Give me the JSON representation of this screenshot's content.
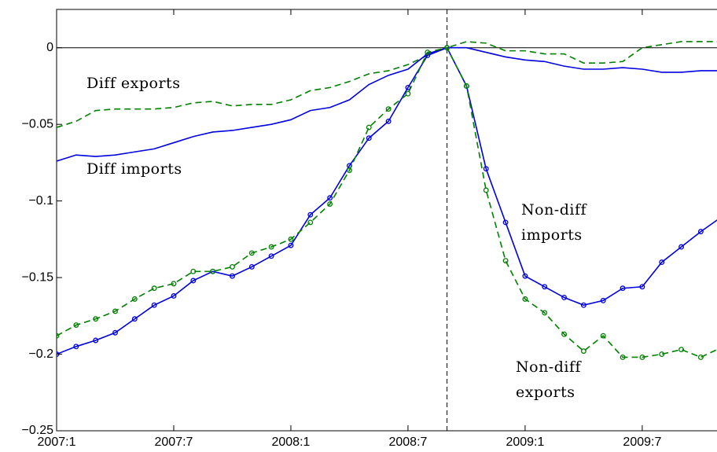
{
  "chart_data": {
    "type": "line",
    "categories": [
      "2007:1",
      null,
      null,
      null,
      null,
      null,
      "2007:7",
      null,
      null,
      null,
      null,
      null,
      "2008:1",
      null,
      null,
      null,
      null,
      null,
      "2008:7",
      null,
      null,
      null,
      null,
      null,
      "2009:1",
      null,
      null,
      null,
      null,
      null,
      "2009:7",
      null,
      null,
      null,
      null
    ],
    "ylim": [
      -0.25,
      0.025
    ],
    "yticks": [
      {
        "value": -0.25,
        "label": "−0.25"
      },
      {
        "value": -0.2,
        "label": "−0.2"
      },
      {
        "value": -0.15,
        "label": "−0.15"
      },
      {
        "value": -0.1,
        "label": "−0.1"
      },
      {
        "value": -0.05,
        "label": "−0.05"
      },
      0
    ],
    "hline": 0,
    "vline": 20,
    "series": [
      {
        "color": "#008000",
        "dashed": true,
        "markers": false,
        "values": [
          -0.052,
          -0.048,
          -0.041,
          -0.04,
          -0.04,
          -0.04,
          -0.039,
          -0.036,
          -0.035,
          -0.038,
          -0.037,
          -0.037,
          -0.034,
          -0.028,
          -0.026,
          -0.022,
          -0.017,
          -0.015,
          -0.011,
          -0.005,
          0.0,
          0.004,
          0.003,
          -0.002,
          -0.002,
          -0.004,
          -0.004,
          -0.01,
          -0.01,
          -0.009,
          0.0,
          0.002,
          0.004,
          0.004,
          0.004
        ]
      },
      {
        "color": "#0000e0",
        "dashed": false,
        "markers": false,
        "values": [
          -0.074,
          -0.07,
          -0.071,
          -0.07,
          -0.068,
          -0.066,
          -0.062,
          -0.058,
          -0.055,
          -0.054,
          -0.052,
          -0.05,
          -0.047,
          -0.041,
          -0.039,
          -0.034,
          -0.024,
          -0.018,
          -0.014,
          -0.004,
          0.0,
          0.0,
          -0.003,
          -0.006,
          -0.008,
          -0.009,
          -0.012,
          -0.014,
          -0.014,
          -0.013,
          -0.014,
          -0.016,
          -0.016,
          -0.015,
          -0.015
        ]
      },
      {
        "color": "#0000e0",
        "dashed": false,
        "markers": true,
        "values": [
          -0.2,
          -0.195,
          -0.191,
          -0.186,
          -0.177,
          -0.168,
          -0.162,
          -0.152,
          -0.146,
          -0.149,
          -0.143,
          -0.136,
          -0.129,
          -0.109,
          -0.098,
          -0.077,
          -0.059,
          -0.048,
          -0.026,
          -0.005,
          0.0,
          -0.025,
          -0.079,
          -0.114,
          -0.149,
          -0.156,
          -0.163,
          -0.168,
          -0.165,
          -0.157,
          -0.156,
          -0.14,
          -0.13,
          -0.12,
          -0.111
        ]
      },
      {
        "color": "#008000",
        "dashed": true,
        "markers": true,
        "values": [
          -0.188,
          -0.181,
          -0.177,
          -0.172,
          -0.164,
          -0.157,
          -0.154,
          -0.146,
          -0.146,
          -0.143,
          -0.134,
          -0.13,
          -0.125,
          -0.114,
          -0.102,
          -0.08,
          -0.052,
          -0.04,
          -0.03,
          -0.003,
          0.0,
          -0.025,
          -0.093,
          -0.139,
          -0.164,
          -0.173,
          -0.187,
          -0.198,
          -0.188,
          -0.202,
          -0.202,
          -0.2,
          -0.197,
          -0.202,
          -0.196
        ]
      }
    ],
    "annotations": [
      [
        "Diff exports"
      ],
      [
        "Diff imports"
      ],
      [
        "Non-diff",
        "imports"
      ],
      [
        "Non-diff",
        "exports"
      ]
    ]
  }
}
